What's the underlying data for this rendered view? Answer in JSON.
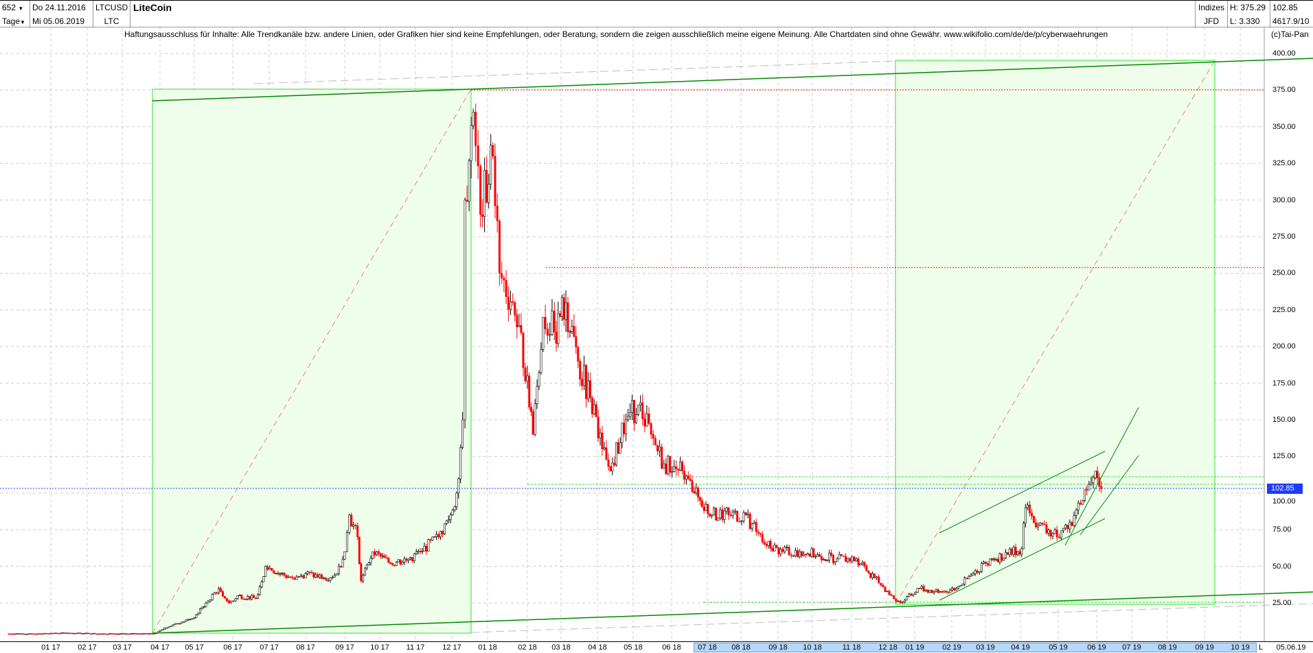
{
  "header": {
    "bars": "652",
    "period": "Tage",
    "date_from": "Do 24.11.2016",
    "date_to": "Mi 05.06.2019",
    "symbol": "LTCUSD",
    "symbol_short": "LTC",
    "title": "LiteCoin",
    "exchange_group": "Indizes",
    "exchange": "JFD",
    "high": "H: 375.29",
    "low": "L: 3.330",
    "last": "102.85",
    "volume": "4617.9/10",
    "copyright": "(c)Tai-Pan"
  },
  "disclaimer": "Haftungsausschluss für Inhalte: Alle Trendkanäle bzw. andere Linien, oder Grafiken hier sind keine Empfehlungen, oder Beratung, sondern die zeigen ausschließlich meine eigene Meinung. Alle Chartdaten sind ohne Gewähr.  www.wikifolio.com/de/de/p/cyberwaehrungen",
  "chart_data": {
    "type": "candlestick",
    "ylim": [
      0,
      410
    ],
    "y_ticks": [
      "400.00",
      "375.00",
      "350.00",
      "325.00",
      "300.00",
      "275.00",
      "250.00",
      "225.00",
      "200.00",
      "175.00",
      "150.00",
      "125.00",
      "100.00",
      "75.00",
      "50.00",
      "25.00"
    ],
    "x_ticks": [
      "01 17",
      "02 17",
      "03 17",
      "04 17",
      "05 17",
      "06 17",
      "07 17",
      "08 17",
      "09 17",
      "10 17",
      "11 17",
      "12 17",
      "01 18",
      "02 18",
      "03 18",
      "04 18",
      "05 18",
      "06 18",
      "07 18",
      "08 18",
      "09 18",
      "10 18",
      "11 18",
      "12 18",
      "01 19",
      "02 19",
      "03 19",
      "04 19",
      "05 19",
      "06 19",
      "07 19",
      "08 19",
      "09 19",
      "10 19"
    ],
    "x_end_label": "L",
    "current_date": "05.06.19",
    "current_price": "102.85",
    "colors": {
      "up": "#000000",
      "down": "#ff0000",
      "box": "#33dd33",
      "trend": "#008800",
      "current": "#1e3cff"
    },
    "resistance_levels": [
      375.29,
      253
    ],
    "support_levels": [
      110,
      105,
      26
    ],
    "closes": [
      [
        "2016-11-24",
        4
      ],
      [
        "2016-12-15",
        4
      ],
      [
        "2017-01-15",
        4.5
      ],
      [
        "2017-02-15",
        4
      ],
      [
        "2017-03-15",
        4
      ],
      [
        "2017-03-28",
        4.5
      ],
      [
        "2017-04-05",
        8
      ],
      [
        "2017-04-20",
        12
      ],
      [
        "2017-05-01",
        15
      ],
      [
        "2017-05-10",
        25
      ],
      [
        "2017-05-20",
        35
      ],
      [
        "2017-05-28",
        25
      ],
      [
        "2017-06-05",
        30
      ],
      [
        "2017-06-20",
        28
      ],
      [
        "2017-06-28",
        50
      ],
      [
        "2017-07-10",
        45
      ],
      [
        "2017-07-20",
        42
      ],
      [
        "2017-08-01",
        45
      ],
      [
        "2017-08-15",
        42
      ],
      [
        "2017-08-25",
        45
      ],
      [
        "2017-09-01",
        60
      ],
      [
        "2017-09-05",
        85
      ],
      [
        "2017-09-12",
        70
      ],
      [
        "2017-09-15",
        40
      ],
      [
        "2017-09-25",
        60
      ],
      [
        "2017-10-10",
        52
      ],
      [
        "2017-10-25",
        55
      ],
      [
        "2017-11-05",
        60
      ],
      [
        "2017-11-20",
        70
      ],
      [
        "2017-11-30",
        85
      ],
      [
        "2017-12-05",
        100
      ],
      [
        "2017-12-10",
        150
      ],
      [
        "2017-12-12",
        300
      ],
      [
        "2017-12-19",
        360
      ],
      [
        "2017-12-25",
        290
      ],
      [
        "2018-01-05",
        330
      ],
      [
        "2018-01-10",
        250
      ],
      [
        "2018-01-20",
        230
      ],
      [
        "2018-02-01",
        180
      ],
      [
        "2018-02-06",
        140
      ],
      [
        "2018-02-15",
        220
      ],
      [
        "2018-02-25",
        210
      ],
      [
        "2018-03-05",
        230
      ],
      [
        "2018-03-15",
        190
      ],
      [
        "2018-03-25",
        165
      ],
      [
        "2018-04-05",
        130
      ],
      [
        "2018-04-12",
        115
      ],
      [
        "2018-04-25",
        150
      ],
      [
        "2018-05-05",
        160
      ],
      [
        "2018-05-15",
        140
      ],
      [
        "2018-05-25",
        120
      ],
      [
        "2018-06-10",
        115
      ],
      [
        "2018-06-20",
        100
      ],
      [
        "2018-07-05",
        85
      ],
      [
        "2018-07-20",
        85
      ],
      [
        "2018-08-05",
        85
      ],
      [
        "2018-08-20",
        65
      ],
      [
        "2018-09-05",
        60
      ],
      [
        "2018-09-20",
        60
      ],
      [
        "2018-10-05",
        58
      ],
      [
        "2018-10-20",
        55
      ],
      [
        "2018-11-05",
        55
      ],
      [
        "2018-11-20",
        42
      ],
      [
        "2018-12-05",
        30
      ],
      [
        "2018-12-15",
        25
      ],
      [
        "2019-01-05",
        35
      ],
      [
        "2019-01-20",
        32
      ],
      [
        "2019-02-05",
        35
      ],
      [
        "2019-02-20",
        45
      ],
      [
        "2019-03-05",
        55
      ],
      [
        "2019-03-20",
        58
      ],
      [
        "2019-04-02",
        62
      ],
      [
        "2019-04-05",
        90
      ],
      [
        "2019-04-15",
        78
      ],
      [
        "2019-04-30",
        70
      ],
      [
        "2019-05-10",
        80
      ],
      [
        "2019-05-20",
        95
      ],
      [
        "2019-05-30",
        115
      ],
      [
        "2019-06-05",
        103
      ]
    ]
  }
}
